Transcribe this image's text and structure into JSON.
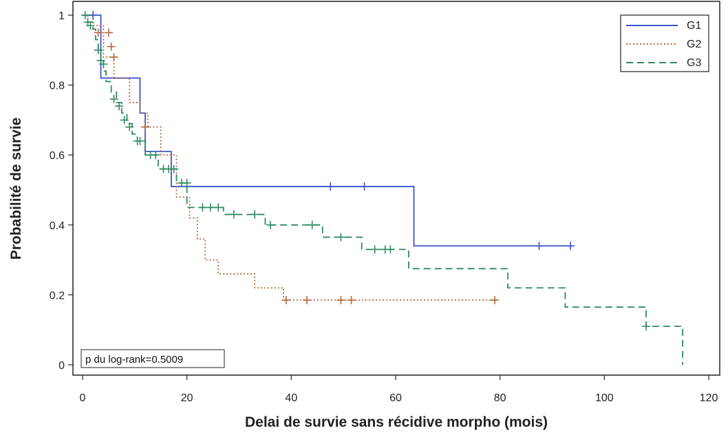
{
  "chart_data": {
    "type": "line",
    "subtype": "kaplan-meier step curves",
    "title": "",
    "xlabel": "Delai de survie sans récidive morpho (mois)",
    "ylabel": "Probabilité de survie",
    "xlim": [
      0,
      120
    ],
    "ylim": [
      0,
      1
    ],
    "x_ticks": [
      0,
      20,
      40,
      60,
      80,
      100,
      120
    ],
    "x_tick_labels": [
      "0",
      "20",
      "40",
      "60",
      "80",
      "100",
      "120"
    ],
    "y_ticks": [
      0,
      0.2,
      0.4,
      0.6,
      0.8,
      1
    ],
    "y_tick_labels": [
      "0",
      "0.2",
      "0.4",
      "0.6",
      "0.8",
      "1"
    ],
    "grid": false,
    "legend_position": "top-right",
    "annotation": "p du log-rank=0.5009",
    "series": [
      {
        "name": "G1",
        "color": "#3b55c8",
        "dash": "solid",
        "steps": [
          [
            0,
            1.0
          ],
          [
            3.5,
            0.82
          ],
          [
            11,
            0.72
          ],
          [
            12,
            0.61
          ],
          [
            17,
            0.51
          ],
          [
            63.5,
            0.34
          ],
          [
            93.5,
            0.34
          ]
        ],
        "censored": [
          [
            2,
            1.0
          ],
          [
            47.5,
            0.51
          ],
          [
            54,
            0.51
          ],
          [
            87.5,
            0.34
          ],
          [
            93.5,
            0.34
          ]
        ]
      },
      {
        "name": "G2",
        "color": "#b4673a",
        "dash": "dotted",
        "steps": [
          [
            0,
            1.0
          ],
          [
            2,
            0.97
          ],
          [
            4,
            0.88
          ],
          [
            6,
            0.82
          ],
          [
            9,
            0.75
          ],
          [
            11,
            0.72
          ],
          [
            12.5,
            0.68
          ],
          [
            15,
            0.6
          ],
          [
            18,
            0.48
          ],
          [
            20.5,
            0.42
          ],
          [
            22,
            0.36
          ],
          [
            23.5,
            0.3
          ],
          [
            26,
            0.26
          ],
          [
            33,
            0.22
          ],
          [
            38.5,
            0.185
          ],
          [
            79,
            0.185
          ]
        ],
        "censored": [
          [
            3,
            0.95
          ],
          [
            5,
            0.95
          ],
          [
            5.5,
            0.91
          ],
          [
            6,
            0.88
          ],
          [
            12,
            0.68
          ],
          [
            39,
            0.185
          ],
          [
            43,
            0.185
          ],
          [
            49.5,
            0.185
          ],
          [
            51.5,
            0.185
          ],
          [
            79,
            0.185
          ]
        ]
      },
      {
        "name": "G3",
        "color": "#2e8a5f",
        "dash": "dashed",
        "steps": [
          [
            0,
            1.0
          ],
          [
            1,
            0.98
          ],
          [
            2,
            0.96
          ],
          [
            2.5,
            0.93
          ],
          [
            3,
            0.9
          ],
          [
            3.5,
            0.87
          ],
          [
            4,
            0.84
          ],
          [
            4.5,
            0.81
          ],
          [
            5.5,
            0.78
          ],
          [
            6.5,
            0.75
          ],
          [
            7.5,
            0.72
          ],
          [
            8.5,
            0.69
          ],
          [
            9.5,
            0.66
          ],
          [
            10.5,
            0.64
          ],
          [
            12,
            0.6
          ],
          [
            14.5,
            0.56
          ],
          [
            18,
            0.52
          ],
          [
            20,
            0.45
          ],
          [
            27,
            0.43
          ],
          [
            35,
            0.4
          ],
          [
            46,
            0.365
          ],
          [
            53.5,
            0.33
          ],
          [
            62.5,
            0.275
          ],
          [
            81.5,
            0.22
          ],
          [
            92.5,
            0.165
          ],
          [
            108,
            0.11
          ],
          [
            115,
            0.0
          ]
        ],
        "censored": [
          [
            0.5,
            1.0
          ],
          [
            1,
            0.98
          ],
          [
            1.5,
            0.97
          ],
          [
            3,
            0.9
          ],
          [
            3.5,
            0.87
          ],
          [
            4,
            0.86
          ],
          [
            6,
            0.76
          ],
          [
            7,
            0.74
          ],
          [
            8,
            0.7
          ],
          [
            9,
            0.68
          ],
          [
            10.5,
            0.64
          ],
          [
            11,
            0.64
          ],
          [
            13,
            0.6
          ],
          [
            14,
            0.6
          ],
          [
            15.5,
            0.56
          ],
          [
            16.5,
            0.56
          ],
          [
            17.5,
            0.56
          ],
          [
            19,
            0.52
          ],
          [
            20,
            0.52
          ],
          [
            23,
            0.45
          ],
          [
            24.5,
            0.45
          ],
          [
            26,
            0.45
          ],
          [
            29,
            0.43
          ],
          [
            33,
            0.43
          ],
          [
            36,
            0.4
          ],
          [
            44,
            0.4
          ],
          [
            49.5,
            0.365
          ],
          [
            56,
            0.33
          ],
          [
            58,
            0.33
          ],
          [
            59,
            0.33
          ],
          [
            108,
            0.11
          ]
        ]
      }
    ]
  }
}
